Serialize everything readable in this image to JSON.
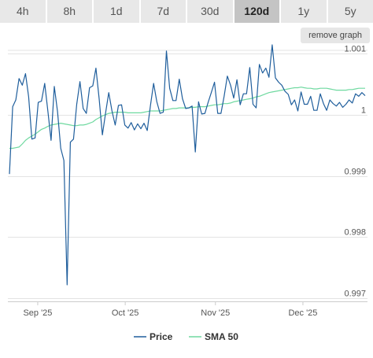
{
  "tabs": [
    {
      "label": "4h",
      "active": false
    },
    {
      "label": "8h",
      "active": false
    },
    {
      "label": "1d",
      "active": false
    },
    {
      "label": "7d",
      "active": false
    },
    {
      "label": "30d",
      "active": false
    },
    {
      "label": "120d",
      "active": true
    },
    {
      "label": "1y",
      "active": false
    },
    {
      "label": "5y",
      "active": false
    }
  ],
  "remove_graph_label": "remove graph",
  "colors": {
    "price": "#1f5e9c",
    "sma": "#6fd9a0",
    "grid": "#e3e3e3",
    "axis_text": "#555555"
  },
  "chart_data": {
    "type": "line",
    "ylim": [
      0.99695,
      1.00105
    ],
    "yticks": [
      0.997,
      0.998,
      0.999,
      1,
      1.001
    ],
    "ytick_labels": [
      "0.997",
      "0.998",
      "0.999",
      "1",
      "1.001"
    ],
    "x_ticks": [
      "Sep '25",
      "Oct '25",
      "Nov '25",
      "Dec '25"
    ],
    "grid": true,
    "legend": "bottom-center",
    "series": [
      {
        "name": "Price",
        "color": "#1f5e9c",
        "values": [
          0.99903,
          1.00013,
          1.00024,
          1.00059,
          1.00048,
          1.00067,
          1.00029,
          0.9996,
          0.99962,
          1.0002,
          1.00022,
          1.00051,
          1.00005,
          0.99958,
          1.00046,
          1.00005,
          0.99945,
          0.99925,
          0.99722,
          0.99955,
          0.9996,
          1.00017,
          1.00054,
          1.0001,
          1.00002,
          1.00044,
          1.00047,
          1.00076,
          1.00026,
          0.99967,
          1.00003,
          1.00036,
          1.00006,
          0.99983,
          1.00015,
          1.00016,
          0.99983,
          0.99978,
          0.99987,
          0.99975,
          0.99985,
          0.99977,
          0.99986,
          0.99974,
          1.00015,
          1.00051,
          1.00021,
          1.00002,
          1.00004,
          1.00104,
          1.00043,
          1.00023,
          1.00023,
          1.00058,
          1.00026,
          1.0001,
          1.00011,
          1.00014,
          0.99939,
          1.00021,
          1.00001,
          1.00002,
          1.0002,
          1.00036,
          1.00053,
          1.00002,
          1.00002,
          1.0003,
          1.00063,
          1.00048,
          1.00027,
          1.00057,
          1.00016,
          1.00034,
          1.00034,
          1.00077,
          1.00017,
          1.00011,
          1.00082,
          1.00068,
          1.00076,
          1.00061,
          1.00114,
          1.0006,
          1.00053,
          1.00048,
          1.00038,
          1.00033,
          1.00016,
          1.00024,
          1.00006,
          1.00037,
          1.00017,
          1.00017,
          1.0003,
          1.00007,
          1.00007,
          1.00034,
          1.00018,
          1.00007,
          1.00024,
          1.00018,
          1.00014,
          1.0002,
          1.00012,
          1.00017,
          1.00024,
          1.00019,
          1.00034,
          1.0003,
          1.00036,
          1.00031
        ]
      },
      {
        "name": "SMA 50",
        "color": "#6fd9a0",
        "values": [
          0.99945,
          0.99945,
          0.99946,
          0.99947,
          0.99952,
          0.99958,
          0.99962,
          0.99965,
          0.99968,
          0.99972,
          0.99976,
          0.99978,
          0.99981,
          0.99983,
          0.99984,
          0.99985,
          0.99986,
          0.99985,
          0.99984,
          0.99983,
          0.99982,
          0.99982,
          0.99983,
          0.99983,
          0.99984,
          0.99986,
          0.99988,
          0.99992,
          0.99995,
          0.99998,
          1.0,
          1.00002,
          1.00003,
          1.00004,
          1.00004,
          1.00004,
          1.00004,
          1.00003,
          1.00003,
          1.00003,
          1.00003,
          1.00003,
          1.00004,
          1.00005,
          1.00006,
          1.00006,
          1.00006,
          1.00006,
          1.00007,
          1.00008,
          1.00009,
          1.0001,
          1.0001,
          1.00011,
          1.00011,
          1.00011,
          1.00011,
          1.00012,
          1.00012,
          1.00013,
          1.00013,
          1.00013,
          1.00014,
          1.00015,
          1.00016,
          1.00016,
          1.00017,
          1.00018,
          1.00018,
          1.00019,
          1.00021,
          1.00022,
          1.00023,
          1.00024,
          1.00025,
          1.00026,
          1.00027,
          1.00029,
          1.0003,
          1.00032,
          1.00034,
          1.00036,
          1.00037,
          1.00038,
          1.00039,
          1.0004,
          1.00041,
          1.00042,
          1.00043,
          1.00044,
          1.00044,
          1.00045,
          1.00044,
          1.00043,
          1.00043,
          1.00042,
          1.00042,
          1.00043,
          1.00043,
          1.00043,
          1.00042,
          1.00041,
          1.0004,
          1.0004,
          1.0004,
          1.0004,
          1.00041,
          1.00041,
          1.00042,
          1.00043,
          1.00043,
          1.00043
        ]
      }
    ]
  }
}
